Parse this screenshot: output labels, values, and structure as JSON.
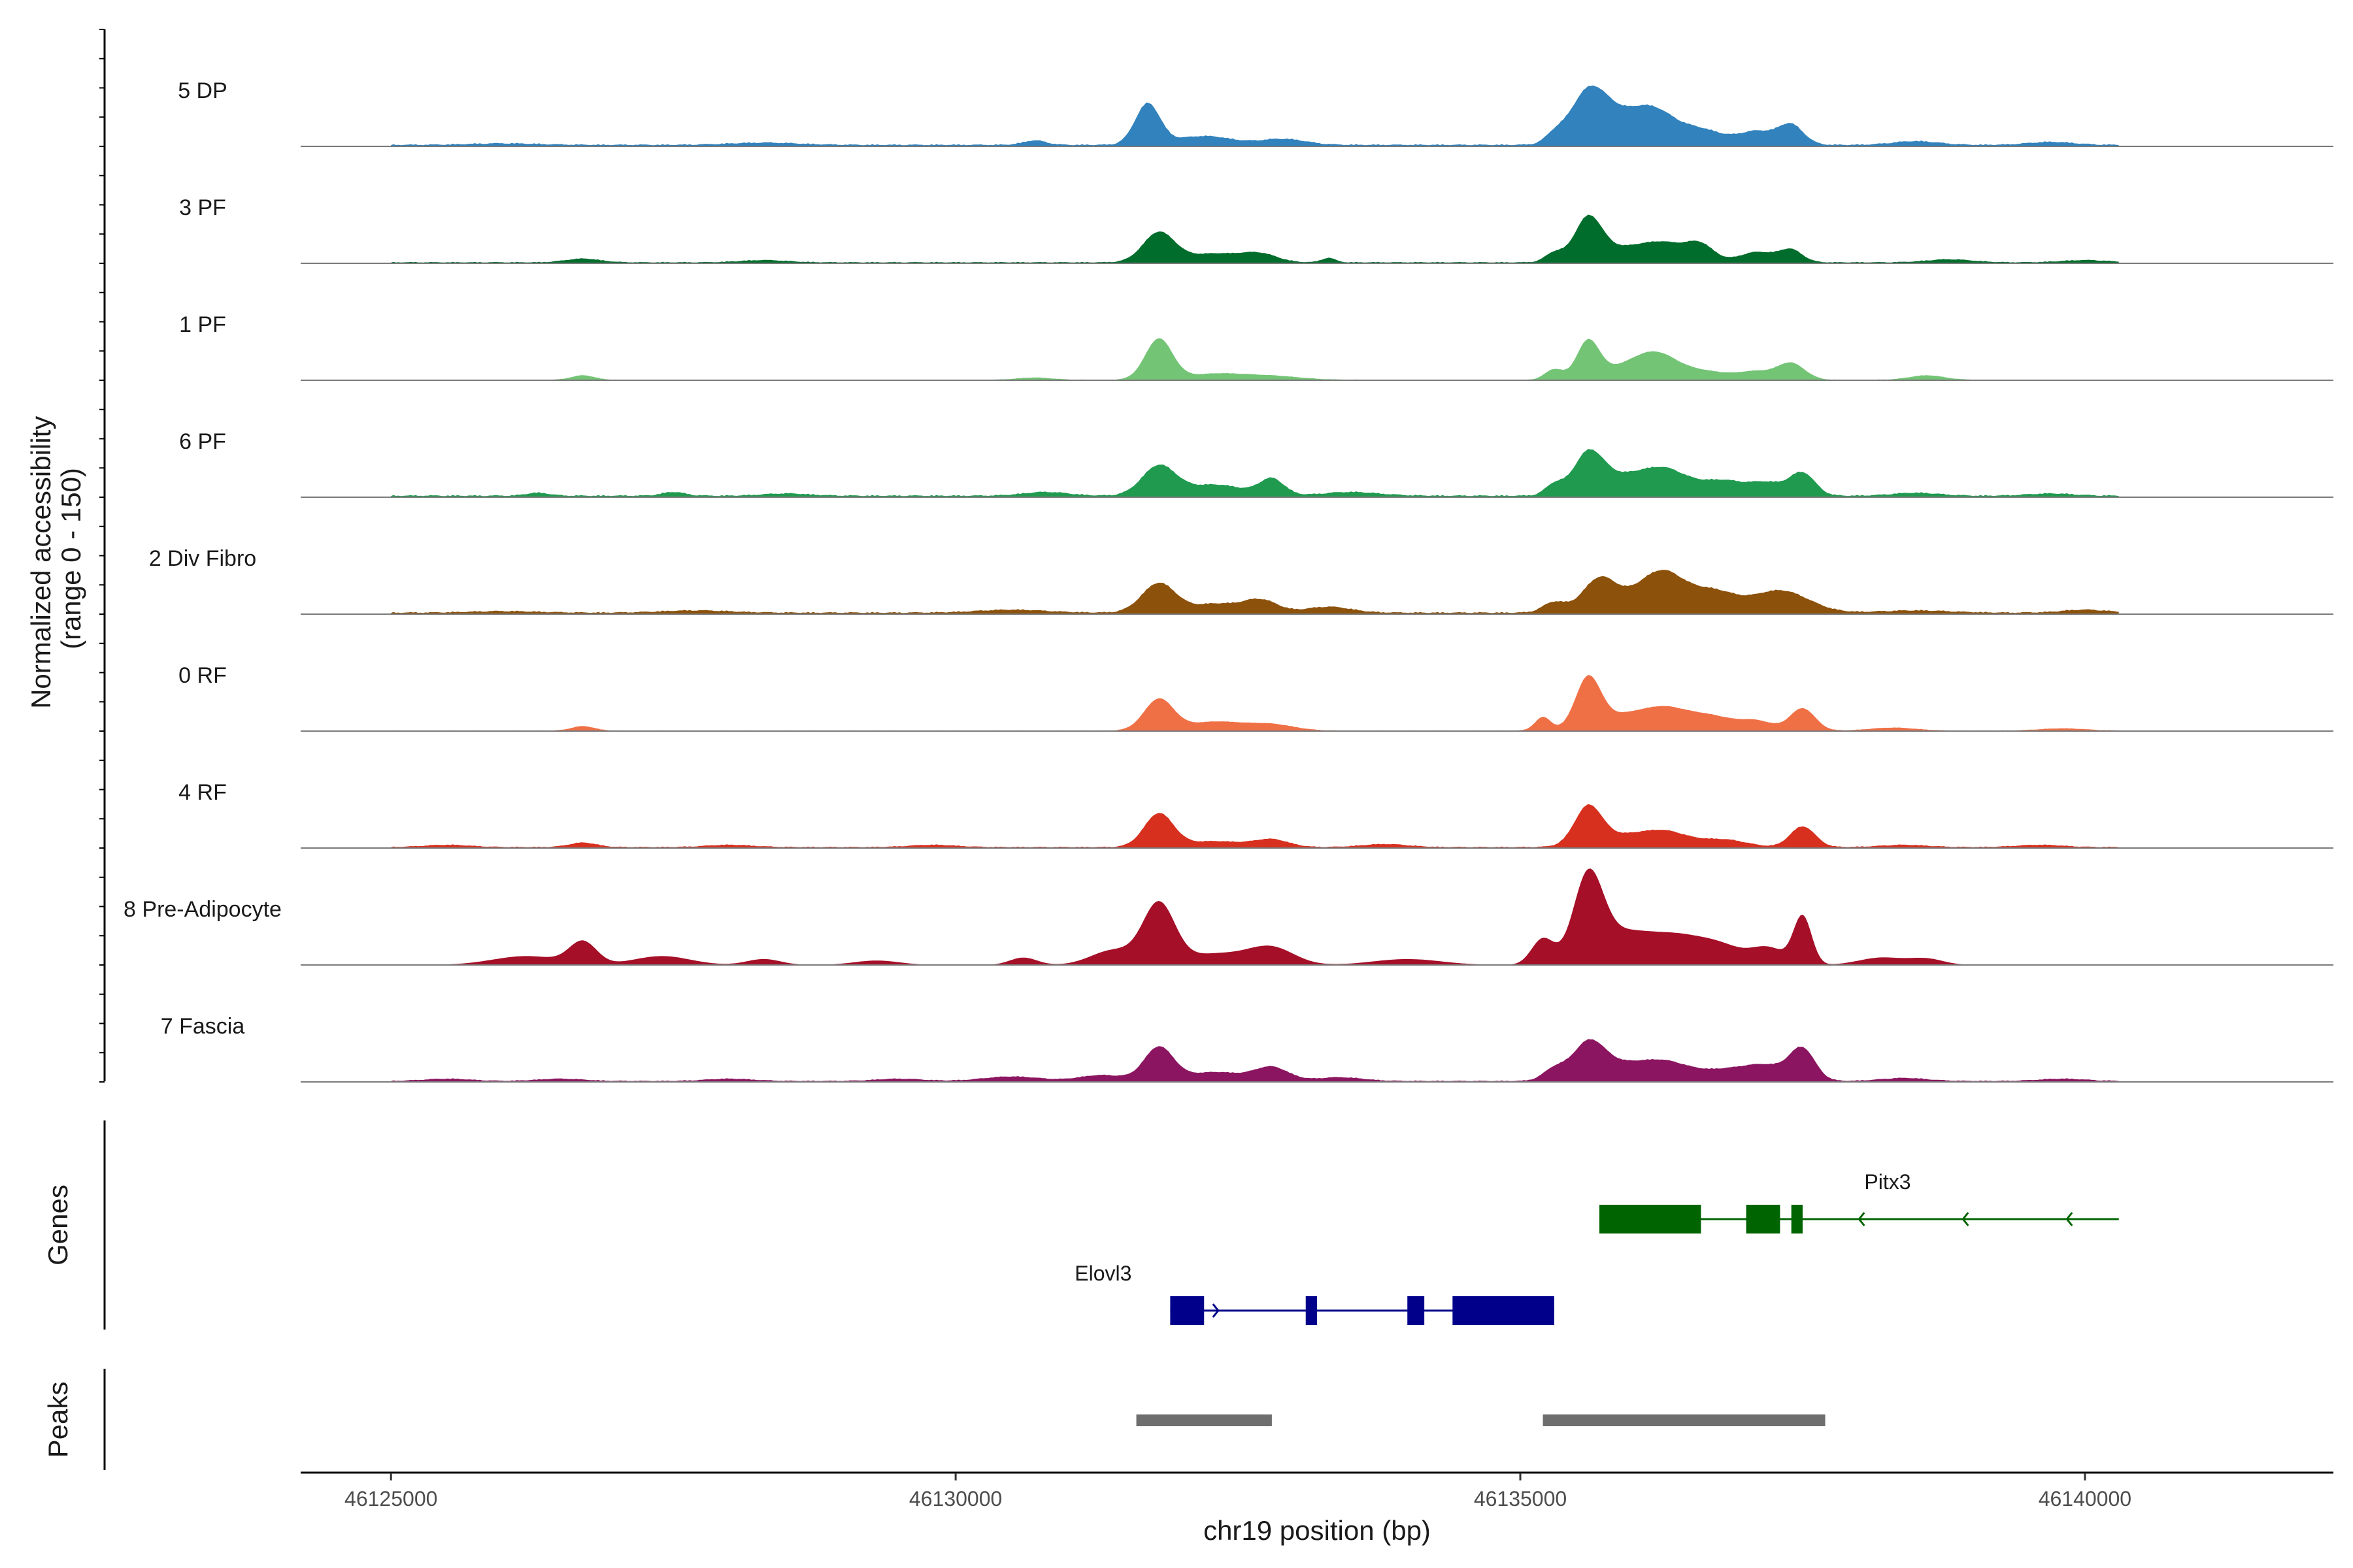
{
  "chart_data": {
    "type": "area",
    "title": "",
    "xlabel": "chr19 position (bp)",
    "ylabel_line1": "Normalized accessibility",
    "ylabel_line2": "(range 0 - 150)",
    "y_range": [
      0,
      150
    ],
    "x_range": [
      46124200,
      46142200
    ],
    "x_ticks": [
      46125000,
      46130000,
      46135000,
      46140000
    ],
    "x_tick_labels": [
      "46125000",
      "46130000",
      "46135000",
      "46140000"
    ],
    "track_extent": [
      46125000,
      46140300
    ],
    "tracks": [
      {
        "name": "5 DP",
        "color": "#3182bd",
        "baseline": 3,
        "peaks": [
          [
            46126000,
            2,
            300
          ],
          [
            46128300,
            3,
            300
          ],
          [
            46130700,
            6,
            100
          ],
          [
            46131700,
            55,
            110
          ],
          [
            46132200,
            12,
            250
          ],
          [
            46132900,
            8,
            200
          ],
          [
            46135300,
            10,
            80
          ],
          [
            46135600,
            60,
            160
          ],
          [
            46135900,
            36,
            260
          ],
          [
            46136200,
            30,
            180
          ],
          [
            46136600,
            20,
            200
          ],
          [
            46137100,
            18,
            160
          ],
          [
            46137400,
            26,
            110
          ],
          [
            46138500,
            5,
            200
          ],
          [
            46139700,
            4,
            200
          ]
        ]
      },
      {
        "name": "3 PF",
        "color": "#006d2c",
        "baseline": 2,
        "peaks": [
          [
            46126700,
            5,
            150
          ],
          [
            46128300,
            3,
            200
          ],
          [
            46131800,
            40,
            140
          ],
          [
            46132300,
            12,
            250
          ],
          [
            46132700,
            10,
            150
          ],
          [
            46133300,
            6,
            60
          ],
          [
            46135300,
            12,
            80
          ],
          [
            46135600,
            55,
            120
          ],
          [
            46135900,
            18,
            250
          ],
          [
            46136300,
            22,
            200
          ],
          [
            46136600,
            20,
            120
          ],
          [
            46137100,
            14,
            160
          ],
          [
            46137400,
            16,
            100
          ],
          [
            46138800,
            4,
            200
          ],
          [
            46140000,
            3,
            200
          ]
        ]
      },
      {
        "name": "1 PF",
        "color": "#74c476",
        "baseline": 1,
        "peaks": [
          [
            46126700,
            6,
            100
          ],
          [
            46130700,
            3,
            150
          ],
          [
            46131800,
            55,
            120
          ],
          [
            46132300,
            8,
            250
          ],
          [
            46132800,
            5,
            250
          ],
          [
            46135300,
            14,
            80
          ],
          [
            46135600,
            50,
            100
          ],
          [
            46135900,
            15,
            200
          ],
          [
            46136200,
            30,
            180
          ],
          [
            46136600,
            12,
            250
          ],
          [
            46137100,
            10,
            150
          ],
          [
            46137400,
            22,
            120
          ],
          [
            46138600,
            6,
            150
          ]
        ]
      },
      {
        "name": "6 PF",
        "color": "#1f9a4f",
        "baseline": 3,
        "peaks": [
          [
            46126300,
            4,
            100
          ],
          [
            46127500,
            5,
            100
          ],
          [
            46128500,
            3,
            200
          ],
          [
            46130800,
            5,
            200
          ],
          [
            46131800,
            40,
            150
          ],
          [
            46132300,
            15,
            250
          ],
          [
            46132800,
            22,
            110
          ],
          [
            46133500,
            5,
            250
          ],
          [
            46135300,
            14,
            80
          ],
          [
            46135600,
            50,
            130
          ],
          [
            46135900,
            25,
            250
          ],
          [
            46136300,
            30,
            200
          ],
          [
            46136800,
            20,
            200
          ],
          [
            46137200,
            16,
            150
          ],
          [
            46137500,
            30,
            110
          ],
          [
            46138500,
            4,
            200
          ],
          [
            46139700,
            3,
            200
          ]
        ]
      },
      {
        "name": "2 Div Fibro",
        "color": "#8c510a",
        "baseline": 3,
        "peaks": [
          [
            46126000,
            2,
            300
          ],
          [
            46127700,
            3,
            300
          ],
          [
            46130500,
            4,
            300
          ],
          [
            46131800,
            40,
            150
          ],
          [
            46132300,
            12,
            200
          ],
          [
            46132700,
            17,
            150
          ],
          [
            46133300,
            8,
            200
          ],
          [
            46135300,
            14,
            100
          ],
          [
            46135700,
            45,
            150
          ],
          [
            46136100,
            25,
            200
          ],
          [
            46136300,
            38,
            180
          ],
          [
            46136700,
            28,
            200
          ],
          [
            46137300,
            30,
            250
          ],
          [
            46138500,
            3,
            300
          ],
          [
            46140000,
            4,
            200
          ]
        ]
      },
      {
        "name": "0 RF",
        "color": "#f07046",
        "baseline": 1,
        "peaks": [
          [
            46126700,
            6,
            100
          ],
          [
            46131800,
            42,
            130
          ],
          [
            46132300,
            12,
            250
          ],
          [
            46132800,
            8,
            200
          ],
          [
            46135200,
            18,
            70
          ],
          [
            46135600,
            65,
            110
          ],
          [
            46135900,
            20,
            250
          ],
          [
            46136300,
            25,
            200
          ],
          [
            46136700,
            18,
            200
          ],
          [
            46137100,
            12,
            150
          ],
          [
            46137500,
            30,
            110
          ],
          [
            46138300,
            4,
            200
          ],
          [
            46139800,
            3,
            200
          ]
        ]
      },
      {
        "name": "4 RF",
        "color": "#d7301f",
        "baseline": 2,
        "peaks": [
          [
            46125500,
            3,
            200
          ],
          [
            46126700,
            6,
            120
          ],
          [
            46128000,
            3,
            200
          ],
          [
            46129800,
            3,
            200
          ],
          [
            46131800,
            45,
            130
          ],
          [
            46132300,
            8,
            250
          ],
          [
            46132800,
            10,
            150
          ],
          [
            46133800,
            4,
            200
          ],
          [
            46135600,
            50,
            120
          ],
          [
            46135900,
            15,
            250
          ],
          [
            46136300,
            18,
            200
          ],
          [
            46136800,
            10,
            200
          ],
          [
            46137500,
            28,
            110
          ],
          [
            46138400,
            3,
            200
          ],
          [
            46139600,
            3,
            200
          ]
        ]
      },
      {
        "name": "8 Pre-Adipocyte",
        "color": "#a50f28",
        "baseline": 0,
        "peaks": [
          [
            46126200,
            12,
            300
          ],
          [
            46126700,
            30,
            120
          ],
          [
            46127400,
            12,
            250
          ],
          [
            46128300,
            8,
            150
          ],
          [
            46129300,
            6,
            200
          ],
          [
            46130600,
            10,
            120
          ],
          [
            46131400,
            20,
            200
          ],
          [
            46131800,
            80,
            140
          ],
          [
            46132300,
            15,
            300
          ],
          [
            46132800,
            22,
            200
          ],
          [
            46134000,
            8,
            300
          ],
          [
            46135200,
            35,
            100
          ],
          [
            46135600,
            110,
            130
          ],
          [
            46135900,
            40,
            250
          ],
          [
            46136400,
            35,
            250
          ],
          [
            46136800,
            20,
            200
          ],
          [
            46137200,
            22,
            150
          ],
          [
            46137500,
            65,
            80
          ],
          [
            46138200,
            10,
            200
          ],
          [
            46138600,
            8,
            150
          ]
        ]
      },
      {
        "name": "7 Fascia",
        "color": "#8b1560",
        "baseline": 2,
        "peaks": [
          [
            46125500,
            3,
            200
          ],
          [
            46126500,
            3,
            200
          ],
          [
            46128000,
            3,
            200
          ],
          [
            46129500,
            3,
            200
          ],
          [
            46130500,
            6,
            250
          ],
          [
            46131300,
            8,
            200
          ],
          [
            46131800,
            45,
            130
          ],
          [
            46132300,
            12,
            250
          ],
          [
            46132800,
            18,
            150
          ],
          [
            46133400,
            5,
            200
          ],
          [
            46135300,
            15,
            100
          ],
          [
            46135600,
            45,
            140
          ],
          [
            46135900,
            22,
            250
          ],
          [
            46136300,
            20,
            200
          ],
          [
            46136800,
            14,
            250
          ],
          [
            46137200,
            18,
            200
          ],
          [
            46137500,
            40,
            110
          ],
          [
            46138400,
            4,
            200
          ],
          [
            46139800,
            3,
            200
          ]
        ]
      }
    ],
    "genes_track_label": "Genes",
    "genes": [
      {
        "name": "Pitx3",
        "strand": "-",
        "color": "#006400",
        "start": 46135700,
        "end": 46140300,
        "exons": [
          [
            46135700,
            46136600
          ],
          [
            46137000,
            46137300
          ],
          [
            46137400,
            46137500
          ]
        ]
      },
      {
        "name": "Elovl3",
        "strand": "+",
        "color": "#00008b",
        "start": 46131900,
        "end": 46135300,
        "exons": [
          [
            46131900,
            46132200
          ],
          [
            46133100,
            46133200
          ],
          [
            46134000,
            46134150
          ],
          [
            46134400,
            46135300
          ]
        ]
      }
    ],
    "peaks_track_label": "Peaks",
    "peak_regions": [
      [
        46131600,
        46132800
      ],
      [
        46135200,
        46137700
      ]
    ]
  }
}
